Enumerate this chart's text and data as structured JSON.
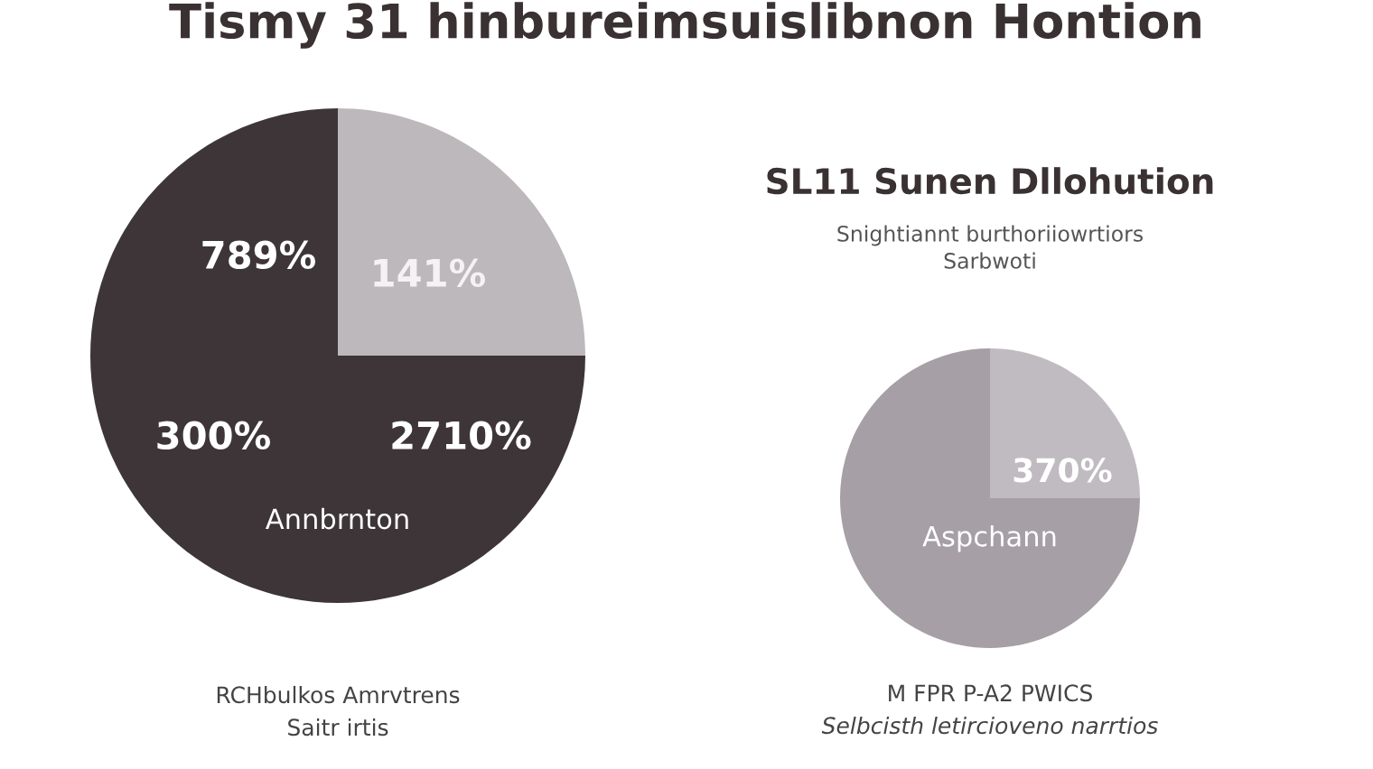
{
  "chart_data": [
    {
      "type": "pie",
      "title": "Tismy 31 hinbureimsuislibnon Hontion",
      "categories": [
        null,
        "Annbrnton"
      ],
      "values": [
        25,
        75
      ],
      "colors": [
        "#bdb8bc",
        "#3e3538"
      ],
      "legend": false,
      "annotations": [
        "789%",
        "141%",
        "300%",
        "2710%",
        "RCHbulkos Amrvtrens",
        "Saitr irtis"
      ]
    },
    {
      "type": "pie",
      "title": "SL11 Sunen Dllohution",
      "subtitle": "Snightiannt burthoriiowrtiors\nSarbwoti",
      "categories": [
        null,
        "Aspchann"
      ],
      "values": [
        25,
        75
      ],
      "colors": [
        "#c0bbc0",
        "#a69fa5"
      ],
      "legend": false,
      "annotations": [
        "370%",
        "M FPR P-A2 PWICS",
        "Selbcisth letircioveno narrtios"
      ]
    }
  ]
}
